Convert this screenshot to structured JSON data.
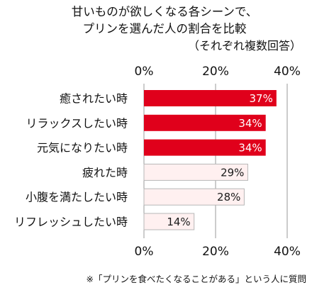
{
  "chart_data": {
    "type": "bar",
    "orientation": "horizontal",
    "title": "甘いものが欲しくなる各シーンで、",
    "title_line2": "プリンを選んだ人の割合を比較",
    "subtitle": "（それぞれ複数回答）",
    "footnote": "※「プリンを食べたくなることがある」という人に質問",
    "categories": [
      "癒されたい時",
      "リラックスしたい時",
      "元気になりたい時",
      "疲れた時",
      "小腹を満たしたい時",
      "リフレッシュしたい時"
    ],
    "values": [
      37,
      34,
      34,
      29,
      28,
      14
    ],
    "value_labels": [
      "37%",
      "34%",
      "34%",
      "29%",
      "28%",
      "14%"
    ],
    "highlighted": [
      true,
      true,
      true,
      false,
      false,
      false
    ],
    "xlim": [
      0,
      40
    ],
    "x_ticks": [
      0,
      20,
      40
    ],
    "x_tick_labels": [
      "0%",
      "20%",
      "40%"
    ],
    "grid": true,
    "colors": {
      "highlight_fill": "#e0001b",
      "highlight_label": "#ffffff",
      "normal_fill": "#fff0f0",
      "normal_stroke": "#b7b7b7",
      "normal_label": "#1a1a1a",
      "grid": "#9a9a9a"
    }
  }
}
